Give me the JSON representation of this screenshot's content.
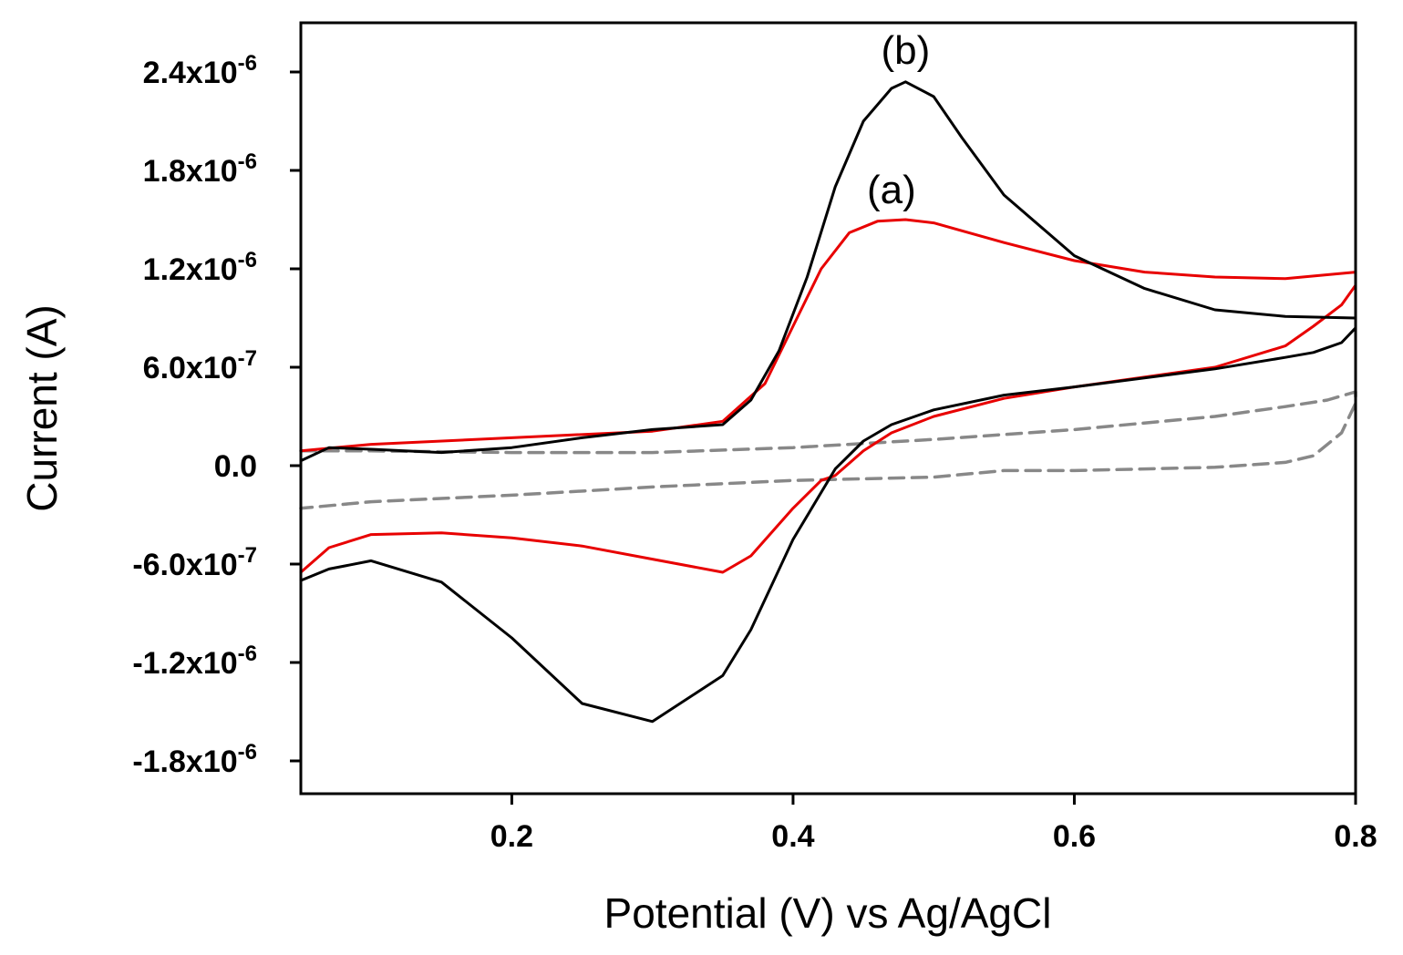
{
  "chart_data": {
    "type": "line",
    "title": "",
    "xlabel": "Potential (V) vs Ag/AgCl",
    "ylabel": "Current (A)",
    "xlim": [
      0.05,
      0.8
    ],
    "ylim": [
      -2e-06,
      2.7e-06
    ],
    "grid": false,
    "legend": "none",
    "x_ticks": [
      {
        "value": 0.2,
        "label": "0.2"
      },
      {
        "value": 0.4,
        "label": "0.4"
      },
      {
        "value": 0.6,
        "label": "0.6"
      },
      {
        "value": 0.8,
        "label": "0.8"
      }
    ],
    "y_ticks": [
      {
        "value": 2.4e-06,
        "mantissa": "2.4x10",
        "exponent": "-6"
      },
      {
        "value": 1.8e-06,
        "mantissa": "1.8x10",
        "exponent": "-6"
      },
      {
        "value": 1.2e-06,
        "mantissa": "1.2x10",
        "exponent": "-6"
      },
      {
        "value": 6e-07,
        "mantissa": "6.0x10",
        "exponent": "-7"
      },
      {
        "value": 0.0,
        "mantissa": "0.0",
        "exponent": ""
      },
      {
        "value": -6e-07,
        "mantissa": "-6.0x10",
        "exponent": "-7"
      },
      {
        "value": -1.2e-06,
        "mantissa": "-1.2x10",
        "exponent": "-6"
      },
      {
        "value": -1.8e-06,
        "mantissa": "-1.8x10",
        "exponent": "-6"
      }
    ],
    "annotations": [
      {
        "text": "(b)",
        "x": 0.48,
        "y": 2.45e-06
      },
      {
        "text": "(a)",
        "x": 0.47,
        "y": 1.6e-06
      }
    ],
    "series": [
      {
        "color": "#888888",
        "dash": true,
        "x": [
          0.05,
          0.1,
          0.2,
          0.3,
          0.4,
          0.5,
          0.6,
          0.7,
          0.75,
          0.78,
          0.8,
          0.8,
          0.79,
          0.77,
          0.75,
          0.7,
          0.6,
          0.55,
          0.5,
          0.4,
          0.3,
          0.2,
          0.1,
          0.05
        ],
        "y": [
          9e-08,
          9e-08,
          8e-08,
          8e-08,
          1.1e-07,
          1.6e-07,
          2.2e-07,
          3e-07,
          3.6e-07,
          4e-07,
          4.5e-07,
          3.8e-07,
          2e-07,
          6e-08,
          2e-08,
          -1e-08,
          -3e-08,
          -3e-08,
          -7e-08,
          -9e-08,
          -1.3e-07,
          -1.8e-07,
          -2.2e-07,
          -2.6e-07
        ]
      },
      {
        "color": "#e80000",
        "dash": false,
        "x": [
          0.05,
          0.1,
          0.2,
          0.3,
          0.35,
          0.38,
          0.4,
          0.42,
          0.44,
          0.46,
          0.48,
          0.5,
          0.55,
          0.6,
          0.65,
          0.7,
          0.75,
          0.8,
          0.8,
          0.79,
          0.77,
          0.75,
          0.7,
          0.6,
          0.55,
          0.5,
          0.47,
          0.45,
          0.43,
          0.42,
          0.4,
          0.37,
          0.35,
          0.3,
          0.25,
          0.2,
          0.15,
          0.1,
          0.07,
          0.05
        ],
        "y": [
          9e-08,
          1.3e-07,
          1.7e-07,
          2.1e-07,
          2.7e-07,
          5e-07,
          8.5e-07,
          1.2e-06,
          1.42e-06,
          1.49e-06,
          1.5e-06,
          1.48e-06,
          1.36e-06,
          1.25e-06,
          1.18e-06,
          1.15e-06,
          1.14e-06,
          1.18e-06,
          1.1e-06,
          9.8e-07,
          8.5e-07,
          7.3e-07,
          6e-07,
          4.8e-07,
          4.1e-07,
          3e-07,
          2e-07,
          9e-08,
          -6e-08,
          -9e-08,
          -2.6e-07,
          -5.5e-07,
          -6.5e-07,
          -5.7e-07,
          -4.9e-07,
          -4.4e-07,
          -4.1e-07,
          -4.2e-07,
          -5e-07,
          -6.5e-07
        ]
      },
      {
        "color": "#000000",
        "dash": false,
        "x": [
          0.05,
          0.07,
          0.1,
          0.15,
          0.2,
          0.25,
          0.3,
          0.35,
          0.37,
          0.39,
          0.41,
          0.43,
          0.45,
          0.47,
          0.48,
          0.5,
          0.52,
          0.55,
          0.6,
          0.65,
          0.7,
          0.75,
          0.8,
          0.8,
          0.79,
          0.77,
          0.75,
          0.7,
          0.6,
          0.55,
          0.5,
          0.47,
          0.45,
          0.43,
          0.4,
          0.37,
          0.35,
          0.3,
          0.25,
          0.2,
          0.15,
          0.1,
          0.07,
          0.05
        ],
        "y": [
          3e-08,
          1.1e-07,
          1e-07,
          8e-08,
          1.1e-07,
          1.7e-07,
          2.2e-07,
          2.5e-07,
          4e-07,
          7e-07,
          1.15e-06,
          1.7e-06,
          2.1e-06,
          2.3e-06,
          2.34e-06,
          2.25e-06,
          2e-06,
          1.65e-06,
          1.28e-06,
          1.08e-06,
          9.5e-07,
          9.1e-07,
          9e-07,
          8.4e-07,
          7.5e-07,
          6.9e-07,
          6.6e-07,
          5.9e-07,
          4.8e-07,
          4.3e-07,
          3.4e-07,
          2.5e-07,
          1.5e-07,
          -2e-08,
          -4.5e-07,
          -1e-06,
          -1.28e-06,
          -1.56e-06,
          -1.45e-06,
          -1.05e-06,
          -7.1e-07,
          -5.8e-07,
          -6.3e-07,
          -7e-07
        ]
      }
    ]
  }
}
